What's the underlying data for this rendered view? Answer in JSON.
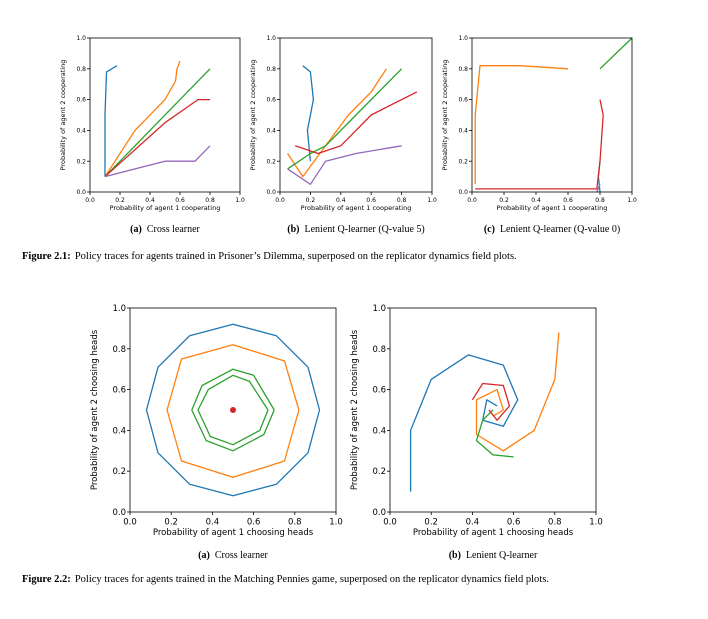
{
  "chart_data": [
    {
      "type": "line",
      "caption_label": "(a)",
      "caption": "Cross learner",
      "xlabel": "Probability of agent 1 cooperating",
      "ylabel": "Probability of agent 2 cooperating",
      "xlim": [
        0,
        1
      ],
      "ylim": [
        0,
        1
      ],
      "xticks": [
        {
          "value": 0,
          "label": "0.0"
        },
        0.2,
        0.4,
        0.6,
        0.8,
        {
          "value": 1,
          "label": "1.0"
        }
      ],
      "yticks": [
        {
          "value": 0,
          "label": "0.0"
        },
        0.2,
        0.4,
        0.6,
        0.8,
        {
          "value": 1,
          "label": "1.0"
        }
      ],
      "series": [
        {
          "color": "#1f77b4",
          "x": [
            0.1,
            0.1,
            0.11,
            0.18
          ],
          "y": [
            0.1,
            0.5,
            0.78,
            0.82
          ]
        },
        {
          "color": "#ff7f0e",
          "x": [
            0.1,
            0.3,
            0.5,
            0.57,
            0.58,
            0.6
          ],
          "y": [
            0.1,
            0.4,
            0.6,
            0.72,
            0.8,
            0.85
          ]
        },
        {
          "color": "#2ca02c",
          "x": [
            0.1,
            0.45,
            0.8
          ],
          "y": [
            0.1,
            0.45,
            0.8
          ]
        },
        {
          "color": "#d62728",
          "x": [
            0.1,
            0.5,
            0.72,
            0.8
          ],
          "y": [
            0.1,
            0.45,
            0.6,
            0.6
          ]
        },
        {
          "color": "#9467bd",
          "x": [
            0.1,
            0.5,
            0.7,
            0.8
          ],
          "y": [
            0.1,
            0.2,
            0.2,
            0.3
          ]
        }
      ]
    },
    {
      "type": "line",
      "caption_label": "(b)",
      "caption": "Lenient Q-learner (Q-value 5)",
      "xlabel": "Probability of agent 1 cooperating",
      "ylabel": "Probability of agent 2 cooperating",
      "xlim": [
        0,
        1
      ],
      "ylim": [
        0,
        1
      ],
      "xticks": [
        {
          "value": 0,
          "label": "0.0"
        },
        0.2,
        0.4,
        0.6,
        0.8,
        {
          "value": 1,
          "label": "1.0"
        }
      ],
      "yticks": [
        {
          "value": 0,
          "label": "0.0"
        },
        0.2,
        0.4,
        0.6,
        0.8,
        {
          "value": 1,
          "label": "1.0"
        }
      ],
      "series": [
        {
          "color": "#1f77b4",
          "x": [
            0.2,
            0.18,
            0.22,
            0.2,
            0.15
          ],
          "y": [
            0.2,
            0.4,
            0.6,
            0.78,
            0.82
          ]
        },
        {
          "color": "#ff7f0e",
          "x": [
            0.05,
            0.15,
            0.3,
            0.45,
            0.6,
            0.7
          ],
          "y": [
            0.25,
            0.1,
            0.3,
            0.5,
            0.65,
            0.8
          ]
        },
        {
          "color": "#2ca02c",
          "x": [
            0.05,
            0.2,
            0.3,
            0.5,
            0.8
          ],
          "y": [
            0.15,
            0.25,
            0.3,
            0.5,
            0.8
          ]
        },
        {
          "color": "#d62728",
          "x": [
            0.1,
            0.25,
            0.4,
            0.6,
            0.9
          ],
          "y": [
            0.3,
            0.25,
            0.3,
            0.5,
            0.65
          ]
        },
        {
          "color": "#9467bd",
          "x": [
            0.05,
            0.2,
            0.3,
            0.5,
            0.8
          ],
          "y": [
            0.15,
            0.05,
            0.2,
            0.25,
            0.3
          ]
        }
      ]
    },
    {
      "type": "line",
      "caption_label": "(c)",
      "caption": "Lenient Q-learner (Q-value 0)",
      "xlabel": "Probability of agent 1 cooperating",
      "ylabel": "Probability of agent 2 cooperating",
      "xlim": [
        0,
        1
      ],
      "ylim": [
        0,
        1
      ],
      "xticks": [
        {
          "value": 0,
          "label": "0.0"
        },
        0.2,
        0.4,
        0.6,
        0.8,
        {
          "value": 1,
          "label": "1.0"
        }
      ],
      "yticks": [
        {
          "value": 0,
          "label": "0.0"
        },
        0.2,
        0.4,
        0.6,
        0.8,
        {
          "value": 1,
          "label": "1.0"
        }
      ],
      "series": [
        {
          "color": "#1f77b4",
          "x": [
            0.8,
            0.79,
            0.8
          ],
          "y": [
            0.0,
            0.1,
            0.2
          ]
        },
        {
          "color": "#ff7f0e",
          "x": [
            0.02,
            0.02,
            0.05,
            0.3,
            0.6
          ],
          "y": [
            0.05,
            0.5,
            0.82,
            0.82,
            0.8
          ]
        },
        {
          "color": "#2ca02c",
          "x": [
            0.8,
            1
          ],
          "y": [
            0.8,
            1
          ]
        },
        {
          "color": "#d62728",
          "x": [
            0.02,
            0.78,
            0.8,
            0.82,
            0.8
          ],
          "y": [
            0.02,
            0.02,
            0.2,
            0.5,
            0.6
          ]
        },
        {
          "color": "#9467bd",
          "x": [
            0.78,
            0.8
          ],
          "y": [
            0.0,
            0.05
          ]
        }
      ]
    },
    {
      "type": "line",
      "caption_label": "(a)",
      "caption": "Cross learner",
      "xlabel": "Probability of agent 1 choosing heads",
      "ylabel": "Probability of agent 2 choosing heads",
      "xlim": [
        0,
        1
      ],
      "ylim": [
        0,
        1
      ],
      "xticks": [
        {
          "value": 0,
          "label": "0.0"
        },
        0.2,
        0.4,
        0.6,
        0.8,
        {
          "value": 1,
          "label": "1.0"
        }
      ],
      "yticks": [
        {
          "value": 0,
          "label": "0.0"
        },
        0.2,
        0.4,
        0.6,
        0.8,
        {
          "value": 1,
          "label": "1.0"
        }
      ],
      "series": [
        {
          "color": "#1f77b4",
          "x": [
            0.92,
            0.864,
            0.71,
            0.5,
            0.29,
            0.136,
            0.08,
            0.136,
            0.29,
            0.5,
            0.71,
            0.864,
            0.92
          ],
          "y": [
            0.5,
            0.71,
            0.864,
            0.92,
            0.864,
            0.71,
            0.5,
            0.29,
            0.136,
            0.08,
            0.136,
            0.29,
            0.5
          ]
        },
        {
          "color": "#ff7f0e",
          "x": [
            0.82,
            0.75,
            0.5,
            0.25,
            0.18,
            0.25,
            0.5,
            0.75,
            0.82
          ],
          "y": [
            0.5,
            0.74,
            0.82,
            0.75,
            0.5,
            0.25,
            0.17,
            0.25,
            0.5
          ]
        },
        {
          "color": "#2ca02c",
          "x": [
            0.7,
            0.6,
            0.5,
            0.35,
            0.3,
            0.37,
            0.5,
            0.65,
            0.7
          ],
          "y": [
            0.5,
            0.67,
            0.7,
            0.62,
            0.5,
            0.35,
            0.3,
            0.38,
            0.5
          ]
        },
        {
          "color": "#2ca02c",
          "x": [
            0.67,
            0.58,
            0.5,
            0.38,
            0.33,
            0.39,
            0.5,
            0.63,
            0.67
          ],
          "y": [
            0.5,
            0.64,
            0.67,
            0.6,
            0.5,
            0.37,
            0.33,
            0.4,
            0.5
          ]
        }
      ],
      "markers": [
        {
          "x": 0.5,
          "y": 0.5,
          "color": "#d62728"
        }
      ]
    },
    {
      "type": "line",
      "caption_label": "(b)",
      "caption": "Lenient Q-learner",
      "xlabel": "Probability of agent 1 choosing heads",
      "ylabel": "Probability of agent 2 choosing heads",
      "xlim": [
        0,
        1
      ],
      "ylim": [
        0,
        1
      ],
      "xticks": [
        {
          "value": 0,
          "label": "0.0"
        },
        0.2,
        0.4,
        0.6,
        0.8,
        {
          "value": 1,
          "label": "1.0"
        }
      ],
      "yticks": [
        {
          "value": 0,
          "label": "0.0"
        },
        0.2,
        0.4,
        0.6,
        0.8,
        {
          "value": 1,
          "label": "1.0"
        }
      ],
      "series": [
        {
          "color": "#1f77b4",
          "x": [
            0.1,
            0.1,
            0.2,
            0.38,
            0.55,
            0.62,
            0.55,
            0.45,
            0.47,
            0.52
          ],
          "y": [
            0.1,
            0.4,
            0.65,
            0.77,
            0.72,
            0.55,
            0.42,
            0.45,
            0.55,
            0.52
          ]
        },
        {
          "color": "#ff7f0e",
          "x": [
            0.82,
            0.8,
            0.7,
            0.55,
            0.42,
            0.42,
            0.52,
            0.55,
            0.5
          ],
          "y": [
            0.88,
            0.65,
            0.4,
            0.3,
            0.38,
            0.55,
            0.6,
            0.5,
            0.47
          ]
        },
        {
          "color": "#2ca02c",
          "x": [
            0.6,
            0.5,
            0.42,
            0.45,
            0.5
          ],
          "y": [
            0.27,
            0.28,
            0.35,
            0.45,
            0.5
          ]
        },
        {
          "color": "#d62728",
          "x": [
            0.4,
            0.45,
            0.55,
            0.58,
            0.52,
            0.48
          ],
          "y": [
            0.55,
            0.63,
            0.62,
            0.52,
            0.45,
            0.5
          ]
        }
      ]
    }
  ],
  "figure_captions": [
    {
      "label": "Figure 2.1:",
      "text": "Policy traces for agents trained in Prisoner’s Dilemma, superposed on the replicator dynamics field plots."
    },
    {
      "label": "Figure 2.2:",
      "text": "Policy traces for agents trained in the Matching Pennies game, superposed on the replicator dynamics field plots."
    }
  ]
}
